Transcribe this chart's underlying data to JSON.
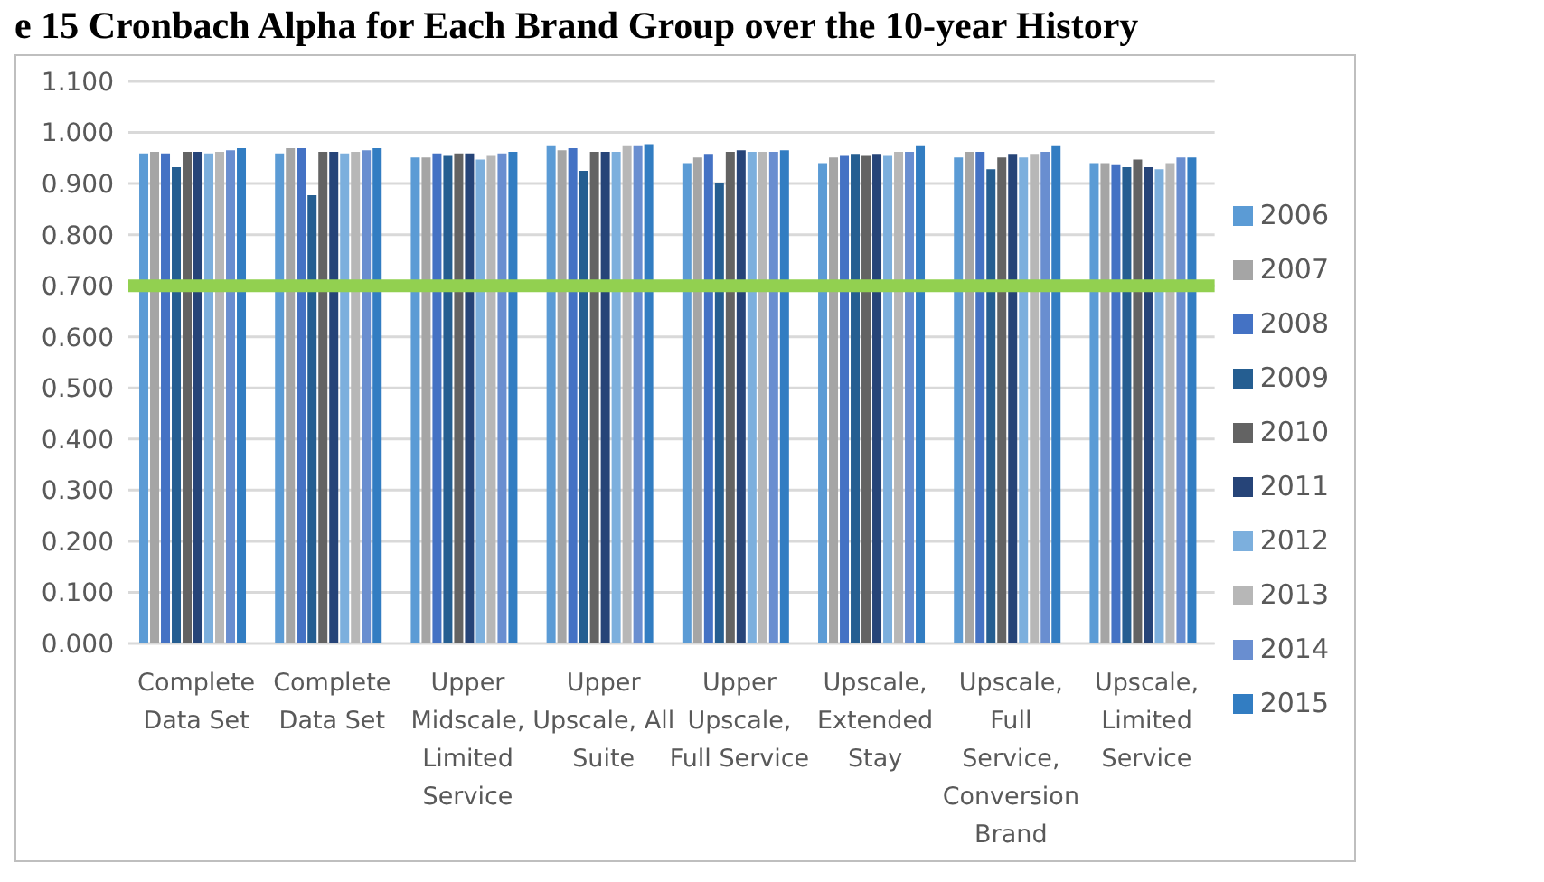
{
  "chart_data": {
    "type": "bar",
    "title": "e 15 Cronbach Alpha for Each Brand Group over the 10-year History",
    "categories": [
      "Complete Data Set",
      "Complete Data Set",
      "Upper Midscale, Limited Service",
      "Upper Upscale, All Suite",
      "Upper Upscale, Full Service",
      "Upscale, Extended Stay",
      "Upscale, Full Service, Conversion Brand",
      "Upscale, Limited Service"
    ],
    "series": [
      {
        "name": "2006",
        "color": "#5b9bd5",
        "values": [
          0.959,
          0.959,
          0.951,
          0.973,
          0.94,
          0.94,
          0.951,
          0.94
        ]
      },
      {
        "name": "2007",
        "color": "#a5a5a5",
        "values": [
          0.962,
          0.969,
          0.951,
          0.965,
          0.951,
          0.951,
          0.962,
          0.94
        ]
      },
      {
        "name": "2008",
        "color": "#4472c4",
        "values": [
          0.959,
          0.969,
          0.959,
          0.969,
          0.958,
          0.954,
          0.962,
          0.936
        ]
      },
      {
        "name": "2009",
        "color": "#255e91",
        "values": [
          0.932,
          0.877,
          0.954,
          0.925,
          0.902,
          0.958,
          0.928,
          0.932
        ]
      },
      {
        "name": "2010",
        "color": "#636363",
        "values": [
          0.962,
          0.962,
          0.959,
          0.962,
          0.962,
          0.954,
          0.951,
          0.947
        ]
      },
      {
        "name": "2011",
        "color": "#264478",
        "values": [
          0.962,
          0.962,
          0.959,
          0.962,
          0.965,
          0.958,
          0.958,
          0.932
        ]
      },
      {
        "name": "2012",
        "color": "#7cafdd",
        "values": [
          0.959,
          0.959,
          0.947,
          0.962,
          0.962,
          0.954,
          0.951,
          0.928
        ]
      },
      {
        "name": "2013",
        "color": "#b7b7b7",
        "values": [
          0.962,
          0.962,
          0.954,
          0.973,
          0.962,
          0.962,
          0.958,
          0.94
        ]
      },
      {
        "name": "2014",
        "color": "#698ed0",
        "values": [
          0.965,
          0.965,
          0.959,
          0.973,
          0.962,
          0.962,
          0.962,
          0.951
        ]
      },
      {
        "name": "2015",
        "color": "#327dc2",
        "values": [
          0.969,
          0.969,
          0.962,
          0.977,
          0.965,
          0.973,
          0.973,
          0.951
        ]
      }
    ],
    "ylim": [
      0,
      1.1
    ],
    "yticks": [
      {
        "value": 0,
        "label": "0.000"
      },
      {
        "value": 0.1,
        "label": "0.100"
      },
      {
        "value": 0.2,
        "label": "0.200"
      },
      {
        "value": 0.3,
        "label": "0.300"
      },
      {
        "value": 0.4,
        "label": "0.400"
      },
      {
        "value": 0.5,
        "label": "0.500"
      },
      {
        "value": 0.6,
        "label": "0.600"
      },
      {
        "value": 0.7,
        "label": "0.700"
      },
      {
        "value": 0.8,
        "label": "0.800"
      },
      {
        "value": 0.9,
        "label": "0.900"
      },
      {
        "value": 1.0,
        "label": "1.000"
      },
      {
        "value": 1.1,
        "label": "1.100"
      }
    ],
    "ref_lines": [
      {
        "axis": "y",
        "value": 0.7,
        "color": "#92d050"
      }
    ],
    "grid": "y",
    "legend": "right"
  }
}
